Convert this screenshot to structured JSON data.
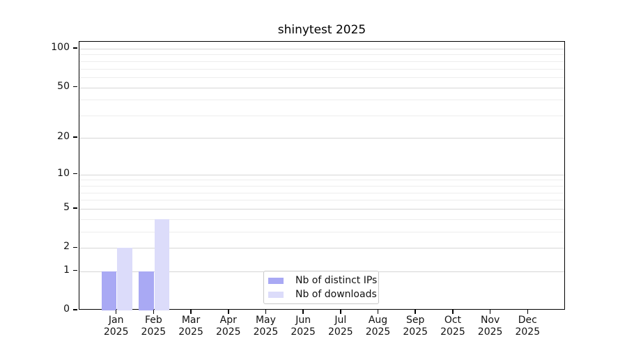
{
  "chart_data": {
    "type": "bar",
    "title": "shinytest 2025",
    "categories": [
      "Jan",
      "Feb",
      "Mar",
      "Apr",
      "May",
      "Jun",
      "Jul",
      "Aug",
      "Sep",
      "Oct",
      "Nov",
      "Dec"
    ],
    "year": "2025",
    "series": [
      {
        "name": "Nb of distinct IPs",
        "color": "#a9a9f4",
        "values": [
          1,
          1,
          0,
          0,
          0,
          0,
          0,
          0,
          0,
          0,
          0,
          0
        ]
      },
      {
        "name": "Nb of downloads",
        "color": "#dcdcfa",
        "values": [
          2,
          4,
          0,
          0,
          0,
          0,
          0,
          0,
          0,
          0,
          0,
          0
        ]
      }
    ],
    "y_axis": {
      "scale": "log10(1+x)",
      "tick_values": [
        0,
        1,
        2,
        5,
        10,
        20,
        50,
        100
      ],
      "tick_labels": [
        "0",
        "1",
        "2",
        "5",
        "10",
        "20",
        "50",
        "100"
      ],
      "minor_grid_values": [
        3,
        4,
        6,
        7,
        8,
        9,
        30,
        40,
        60,
        70,
        80,
        90
      ],
      "ylim_top_value": 113
    },
    "x_axis": {
      "tick_label_lines": 2
    },
    "legend": {
      "position": "lower center",
      "entries": [
        "Nb of distinct IPs",
        "Nb of downloads"
      ]
    },
    "grid": {
      "major_color": "#d6d6d6",
      "minor_color": "#ededed"
    },
    "axis_color": "#000000",
    "background_color": "#ffffff"
  }
}
